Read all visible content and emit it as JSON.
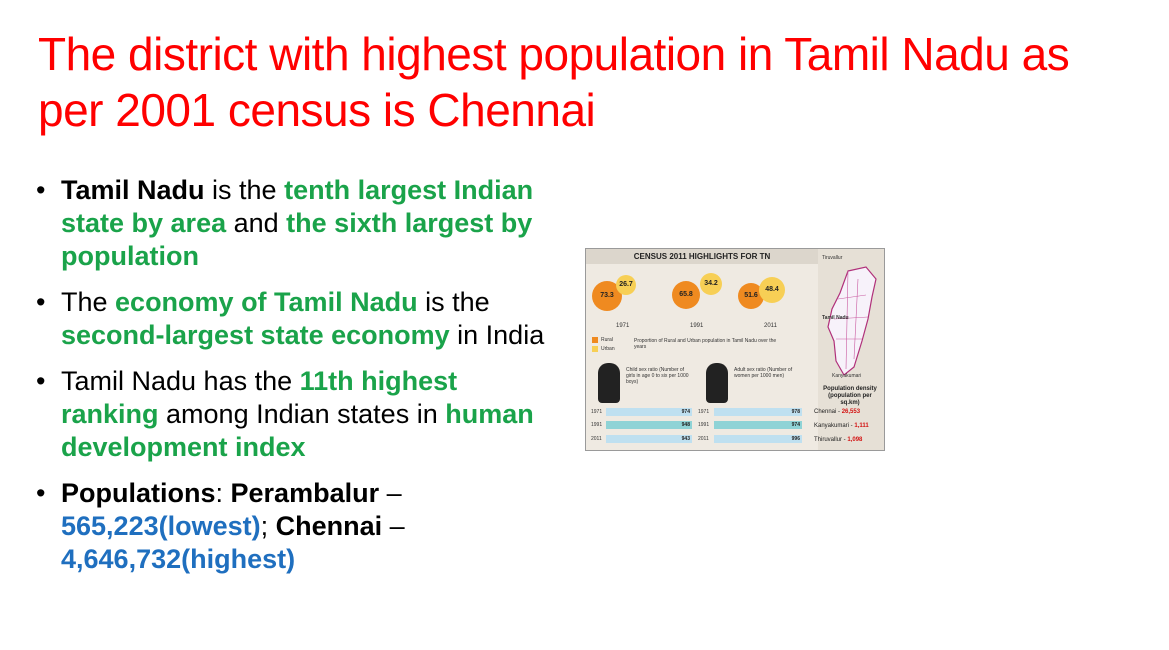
{
  "title": "The district with highest population in Tamil Nadu as per 2001 census is Chennai",
  "bullets": [
    {
      "segments": [
        {
          "text": "Tamil Nadu",
          "style": "bold"
        },
        {
          "text": " is the ",
          "style": "normal"
        },
        {
          "text": "tenth largest Indian state by area",
          "style": "green"
        },
        {
          "text": " and ",
          "style": "normal"
        },
        {
          "text": "the sixth largest by population",
          "style": "green"
        }
      ]
    },
    {
      "segments": [
        {
          "text": "The ",
          "style": "normal"
        },
        {
          "text": "economy of Tamil Nadu",
          "style": "green"
        },
        {
          "text": " is the ",
          "style": "normal"
        },
        {
          "text": "second-largest state economy",
          "style": "green"
        },
        {
          "text": " in India",
          "style": "normal"
        }
      ]
    },
    {
      "segments": [
        {
          "text": "Tamil Nadu has the ",
          "style": "normal"
        },
        {
          "text": "11th highest ranking",
          "style": "green"
        },
        {
          "text": " among Indian states in ",
          "style": "normal"
        },
        {
          "text": "human development index",
          "style": "green"
        }
      ]
    },
    {
      "segments": [
        {
          "text": "Populations",
          "style": "bold"
        },
        {
          "text": ": ",
          "style": "normal"
        },
        {
          "text": "Perambalur",
          "style": "bold"
        },
        {
          "text": " – ",
          "style": "normal"
        },
        {
          "text": "565,223(lowest)",
          "style": "blue"
        },
        {
          "text": "; ",
          "style": "normal"
        },
        {
          "text": "Chennai",
          "style": "bold"
        },
        {
          "text": " – ",
          "style": "normal"
        },
        {
          "text": "4,646,732(highest)",
          "style": "blue"
        }
      ]
    }
  ],
  "bullet_glyph": "•",
  "colors": {
    "title": "#ff0000",
    "green": "#1aa34a",
    "blue": "#1f6fbf"
  },
  "infographic": {
    "header": "CENSUS 2011 HIGHLIGHTS FOR TN",
    "years": [
      {
        "year": "1971",
        "rural": "73.3",
        "urban": "26.7"
      },
      {
        "year": "1991",
        "rural": "65.8",
        "urban": "34.2"
      },
      {
        "year": "2011",
        "rural": "51.6",
        "urban": "48.4"
      }
    ],
    "legend": {
      "rural": "Rural",
      "urban": "Urban",
      "caption": "Proportion of Rural and Urban population in Tamil Nadu over the years"
    },
    "child_ratio": {
      "label": "Child sex ratio (Number of girls in age 0 to six per 1000 boys)",
      "rows": [
        {
          "year": "1971",
          "value": "974"
        },
        {
          "year": "1991",
          "value": "948"
        },
        {
          "year": "2011",
          "value": "943"
        }
      ]
    },
    "adult_ratio": {
      "label": "Adult sex ratio (Number of women per 1000 men)",
      "rows": [
        {
          "year": "1971",
          "value": "978"
        },
        {
          "year": "1991",
          "value": "974"
        },
        {
          "year": "2011",
          "value": "996"
        }
      ]
    },
    "map_labels": {
      "top": "Tiruvallur",
      "center": "Tamil Nadu",
      "bottom": "Kanyakumari"
    },
    "density": {
      "label": "Population density (population per sq.km)",
      "rows": [
        {
          "name": "Chennai",
          "value": "26,553"
        },
        {
          "name": "Kanyakumari",
          "value": "1,111"
        },
        {
          "name": "Thiruvallur",
          "value": "1,098"
        }
      ]
    }
  }
}
